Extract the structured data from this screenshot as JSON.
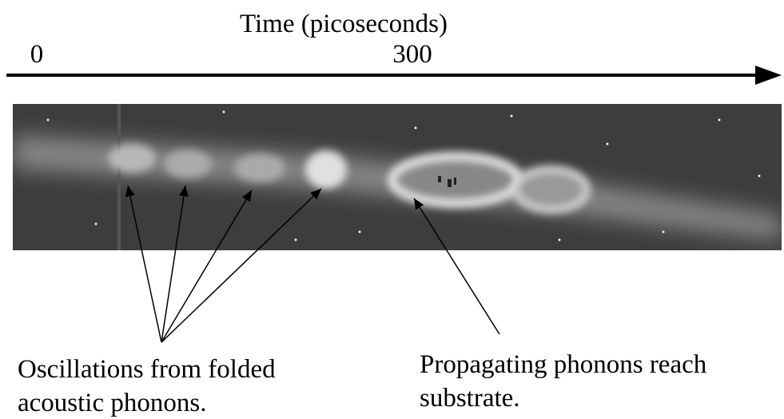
{
  "axis": {
    "label": "Time (picoseconds)",
    "ticks": [
      "0",
      "300"
    ]
  },
  "annotations": [
    {
      "lines": [
        "Oscillations from folded",
        "acoustic phonons."
      ]
    },
    {
      "lines": [
        "Propagating phonons reach",
        "substrate."
      ]
    }
  ]
}
